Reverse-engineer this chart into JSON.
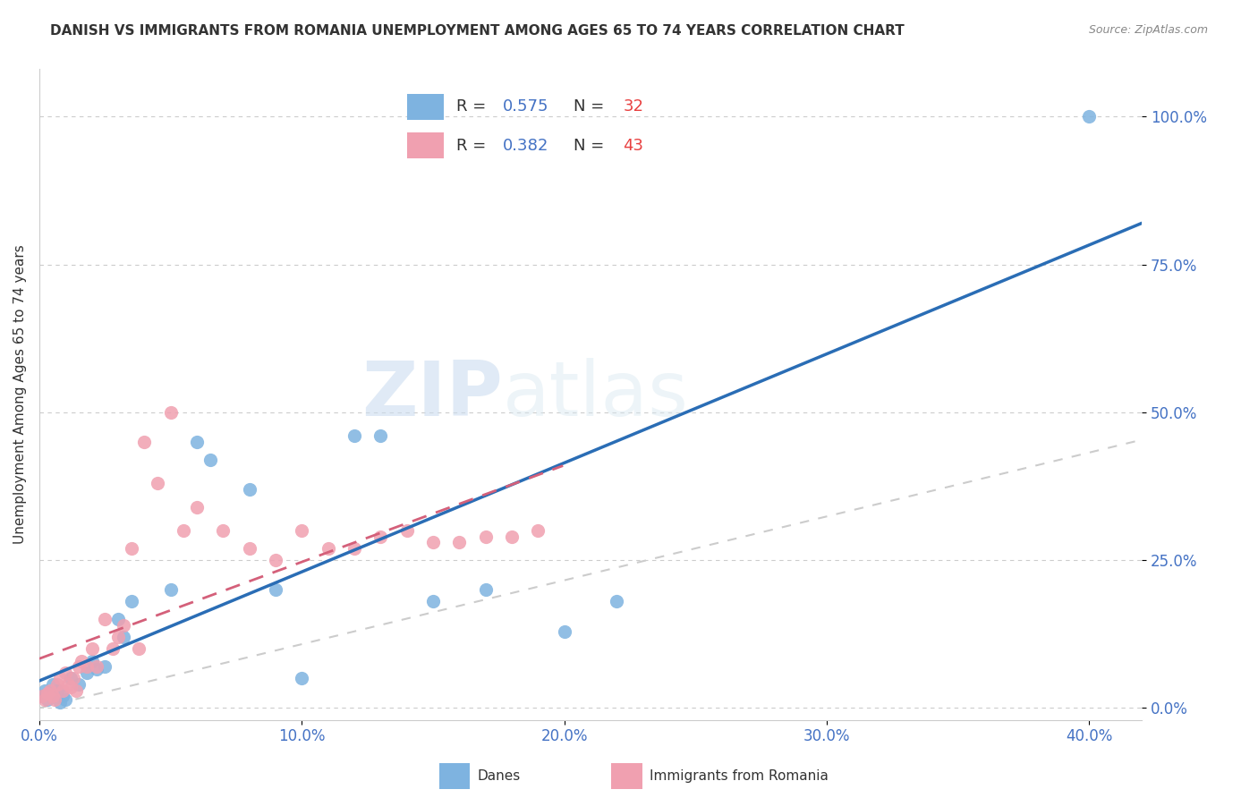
{
  "title": "DANISH VS IMMIGRANTS FROM ROMANIA UNEMPLOYMENT AMONG AGES 65 TO 74 YEARS CORRELATION CHART",
  "source": "Source: ZipAtlas.com",
  "xlabel_ticks": [
    "0.0%",
    "10.0%",
    "20.0%",
    "30.0%",
    "40.0%"
  ],
  "ylabel_ticks": [
    "0.0%",
    "25.0%",
    "50.0%",
    "75.0%",
    "100.0%"
  ],
  "xlim": [
    0.0,
    0.42
  ],
  "ylim": [
    -0.02,
    1.08
  ],
  "danes_x": [
    0.001,
    0.002,
    0.003,
    0.004,
    0.005,
    0.006,
    0.007,
    0.008,
    0.009,
    0.01,
    0.012,
    0.015,
    0.018,
    0.02,
    0.022,
    0.025,
    0.03,
    0.032,
    0.035,
    0.05,
    0.06,
    0.065,
    0.08,
    0.09,
    0.1,
    0.12,
    0.13,
    0.15,
    0.17,
    0.2,
    0.22,
    0.4
  ],
  "danes_y": [
    0.02,
    0.03,
    0.015,
    0.025,
    0.04,
    0.02,
    0.03,
    0.01,
    0.02,
    0.015,
    0.05,
    0.04,
    0.06,
    0.08,
    0.065,
    0.07,
    0.15,
    0.12,
    0.18,
    0.2,
    0.45,
    0.42,
    0.37,
    0.2,
    0.05,
    0.46,
    0.46,
    0.18,
    0.2,
    0.13,
    0.18,
    1.0
  ],
  "romania_x": [
    0.001,
    0.002,
    0.003,
    0.004,
    0.005,
    0.006,
    0.007,
    0.008,
    0.009,
    0.01,
    0.011,
    0.012,
    0.013,
    0.014,
    0.015,
    0.016,
    0.018,
    0.02,
    0.022,
    0.025,
    0.028,
    0.03,
    0.032,
    0.035,
    0.038,
    0.04,
    0.045,
    0.05,
    0.055,
    0.06,
    0.07,
    0.08,
    0.09,
    0.1,
    0.11,
    0.12,
    0.13,
    0.14,
    0.15,
    0.16,
    0.17,
    0.18,
    0.19
  ],
  "romania_y": [
    0.02,
    0.015,
    0.025,
    0.03,
    0.02,
    0.015,
    0.04,
    0.05,
    0.03,
    0.06,
    0.04,
    0.035,
    0.05,
    0.03,
    0.07,
    0.08,
    0.07,
    0.1,
    0.07,
    0.15,
    0.1,
    0.12,
    0.14,
    0.27,
    0.1,
    0.45,
    0.38,
    0.5,
    0.3,
    0.34,
    0.3,
    0.27,
    0.25,
    0.3,
    0.27,
    0.27,
    0.29,
    0.3,
    0.28,
    0.28,
    0.29,
    0.29,
    0.3
  ],
  "danes_color": "#7eb3e0",
  "romania_color": "#f0a0b0",
  "danes_line_color": "#2a6db5",
  "romania_line_color": "#d4607a",
  "danes_R": 0.575,
  "danes_N": 32,
  "romania_R": 0.382,
  "romania_N": 43,
  "legend_label_danes": "Danes",
  "legend_label_romania": "Immigrants from Romania",
  "ylabel": "Unemployment Among Ages 65 to 74 years",
  "watermark_zip": "ZIP",
  "watermark_atlas": "atlas",
  "background_color": "#ffffff",
  "grid_color": "#cccccc"
}
